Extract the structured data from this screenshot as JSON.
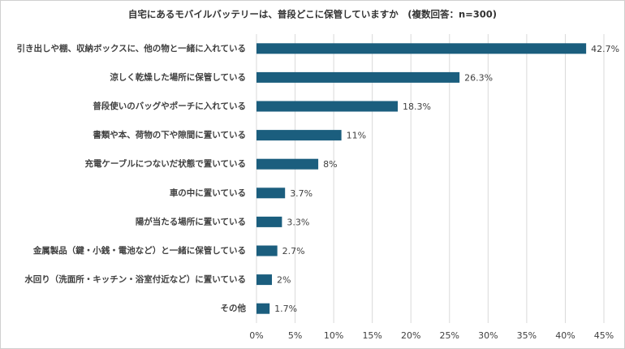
{
  "chart_data": {
    "type": "barh",
    "title": "自宅にあるモバイルバッテリーは、普段どこに保管していますか　(複数回答：n=300)",
    "categories": [
      "引き出しや棚、収納ボックスに、他の物と一緒に入れている",
      "涼しく乾燥した場所に保管している",
      "普段使いのバッグやポーチに入れている",
      "書類や本、荷物の下や隙間に置いている",
      "充電ケーブルにつないだ状態で置いている",
      "車の中に置いている",
      "陽が当たる場所に置いている",
      "金属製品（鍵・小銭・電池など）と一緒に保管している",
      "水回り（洗面所・キッチン・浴室付近など）に置いている",
      "その他"
    ],
    "values": [
      42.7,
      26.3,
      18.3,
      11,
      8,
      3.7,
      3.3,
      2.7,
      2,
      1.7
    ],
    "value_labels": [
      "42.7%",
      "26.3%",
      "18.3%",
      "11%",
      "8%",
      "3.7%",
      "3.3%",
      "2.7%",
      "2%",
      "1.7%"
    ],
    "color": "#1b5e7e",
    "xlim": [
      0,
      45
    ],
    "xticks": [
      {
        "value": 0,
        "label": "0%"
      },
      {
        "value": 5,
        "label": "5%"
      },
      {
        "value": 10,
        "label": "10%"
      },
      {
        "value": 15,
        "label": "15%"
      },
      {
        "value": 20,
        "label": "20%"
      },
      {
        "value": 25,
        "label": "25%"
      },
      {
        "value": 30,
        "label": "30%"
      },
      {
        "value": 35,
        "label": "35%"
      },
      {
        "value": 40,
        "label": "40%"
      },
      {
        "value": 45,
        "label": "45%"
      }
    ],
    "grid": true
  }
}
